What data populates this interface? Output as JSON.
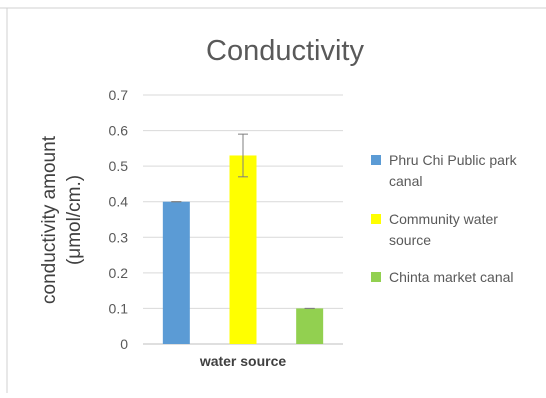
{
  "chart_data": {
    "type": "bar",
    "title": "Conductivity",
    "xlabel": "water source",
    "ylabel_line1": "conductivity amount",
    "ylabel_line2": "(μmol/cm.)",
    "ylim": [
      0,
      0.7
    ],
    "yticks": [
      "0",
      "0.1",
      "0.2",
      "0.3",
      "0.4",
      "0.5",
      "0.6",
      "0.7"
    ],
    "grid": true,
    "legend_position": "right",
    "series": [
      {
        "name": "Phru Chi Public park canal",
        "legend_lines": [
          "Phru Chi Public park",
          "canal"
        ],
        "value": 0.4,
        "error": 0,
        "color": "#5b9bd5"
      },
      {
        "name": "Community water source",
        "legend_lines": [
          "Community water",
          "source"
        ],
        "value": 0.53,
        "error": 0.06,
        "color": "#ffff00"
      },
      {
        "name": "Chinta market canal",
        "legend_lines": [
          "Chinta market canal"
        ],
        "value": 0.1,
        "error": 0,
        "color": "#92d050"
      }
    ]
  }
}
